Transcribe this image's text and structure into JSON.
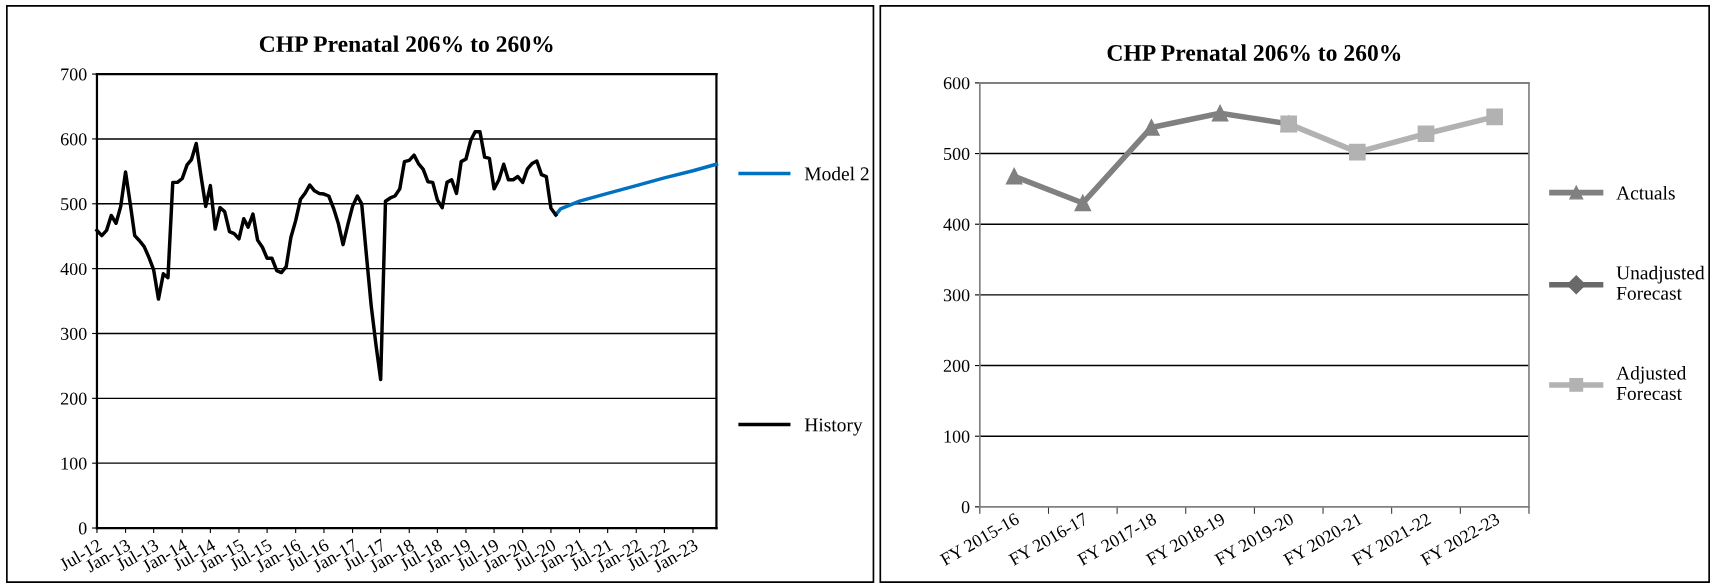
{
  "chart_data": [
    {
      "type": "line",
      "title": "CHP Prenatal 206% to 260%",
      "legend": "right",
      "grid": "y",
      "marker": "none",
      "xlim": [
        "2012-07",
        "2023-06"
      ],
      "ylim": [
        0,
        700
      ],
      "yticks": [
        0,
        100,
        200,
        300,
        400,
        500,
        600,
        700
      ],
      "xticks": [
        {
          "value": "2012-07",
          "label": "Jul-12"
        },
        {
          "value": "2013-01",
          "label": "Jan-13"
        },
        {
          "value": "2013-07",
          "label": "Jul-13"
        },
        {
          "value": "2014-01",
          "label": "Jan-14"
        },
        {
          "value": "2014-07",
          "label": "Jul-14"
        },
        {
          "value": "2015-01",
          "label": "Jan-15"
        },
        {
          "value": "2015-07",
          "label": "Jul-15"
        },
        {
          "value": "2016-01",
          "label": "Jan-16"
        },
        {
          "value": "2016-07",
          "label": "Jul-16"
        },
        {
          "value": "2017-01",
          "label": "Jan-17"
        },
        {
          "value": "2017-07",
          "label": "Jul-17"
        },
        {
          "value": "2018-01",
          "label": "Jan-18"
        },
        {
          "value": "2018-07",
          "label": "Jul-18"
        },
        {
          "value": "2019-01",
          "label": "Jan-19"
        },
        {
          "value": "2019-07",
          "label": "Jul-19"
        },
        {
          "value": "2020-01",
          "label": "Jan-20"
        },
        {
          "value": "2020-07",
          "label": "Jul-20"
        },
        {
          "value": "2021-01",
          "label": "Jan-21"
        },
        {
          "value": "2021-07",
          "label": "Jul-21"
        },
        {
          "value": "2022-01",
          "label": "Jan-22"
        },
        {
          "value": "2022-07",
          "label": "Jul-22"
        },
        {
          "value": "2023-01",
          "label": "Jan-23"
        }
      ],
      "series": [
        {
          "name": "Model 2",
          "color": "#0070c0",
          "x": [
            "2020-08",
            "2020-09",
            "2021-01",
            "2021-07",
            "2022-01",
            "2022-07",
            "2023-01",
            "2023-06"
          ],
          "values": [
            483,
            492,
            504,
            516,
            528,
            540,
            551,
            561
          ]
        },
        {
          "name": "History",
          "color": "#000000",
          "x": [
            "2012-07",
            "2012-08",
            "2012-09",
            "2012-10",
            "2012-11",
            "2012-12",
            "2013-01",
            "2013-02",
            "2013-03",
            "2013-04",
            "2013-05",
            "2013-06",
            "2013-07",
            "2013-08",
            "2013-09",
            "2013-10",
            "2013-11",
            "2013-12",
            "2014-01",
            "2014-02",
            "2014-03",
            "2014-04",
            "2014-05",
            "2014-06",
            "2014-07",
            "2014-08",
            "2014-09",
            "2014-10",
            "2014-11",
            "2014-12",
            "2015-01",
            "2015-02",
            "2015-03",
            "2015-04",
            "2015-05",
            "2015-06",
            "2015-07",
            "2015-08",
            "2015-09",
            "2015-10",
            "2015-11",
            "2015-12",
            "2016-01",
            "2016-02",
            "2016-03",
            "2016-04",
            "2016-05",
            "2016-06",
            "2016-07",
            "2016-08",
            "2016-09",
            "2016-10",
            "2016-11",
            "2016-12",
            "2017-01",
            "2017-02",
            "2017-03",
            "2017-04",
            "2017-05",
            "2017-06",
            "2017-07",
            "2017-08",
            "2017-09",
            "2017-10",
            "2017-11",
            "2017-12",
            "2018-01",
            "2018-02",
            "2018-03",
            "2018-04",
            "2018-05",
            "2018-06",
            "2018-07",
            "2018-08",
            "2018-09",
            "2018-10",
            "2018-11",
            "2018-12",
            "2019-01",
            "2019-02",
            "2019-03",
            "2019-04",
            "2019-05",
            "2019-06",
            "2019-07",
            "2019-08",
            "2019-09",
            "2019-10",
            "2019-11",
            "2019-12",
            "2020-01",
            "2020-02",
            "2020-03",
            "2020-04",
            "2020-05",
            "2020-06",
            "2020-07",
            "2020-08"
          ],
          "values": [
            459,
            451,
            459,
            482,
            470,
            496,
            549,
            499,
            451,
            443,
            434,
            417,
            398,
            353,
            392,
            386,
            533,
            533,
            539,
            560,
            568,
            593,
            544,
            496,
            528,
            461,
            494,
            488,
            457,
            454,
            446,
            477,
            464,
            484,
            444,
            433,
            416,
            416,
            397,
            394,
            403,
            448,
            474,
            507,
            516,
            529,
            520,
            516,
            515,
            512,
            493,
            470,
            437,
            467,
            496,
            512,
            500,
            419,
            343,
            282,
            229,
            504,
            509,
            512,
            523,
            565,
            567,
            575,
            562,
            553,
            534,
            533,
            506,
            494,
            533,
            537,
            516,
            565,
            569,
            598,
            611,
            611,
            572,
            570,
            523,
            537,
            561,
            537,
            537,
            542,
            533,
            554,
            562,
            566,
            545,
            542,
            493,
            483
          ]
        }
      ]
    },
    {
      "type": "line",
      "title": "CHP Prenatal 206% to 260%",
      "legend": "right",
      "grid": "y",
      "categories": [
        "FY 2015-16",
        "FY 2016-17",
        "FY 2017-18",
        "FY 2018-19",
        "FY 2019-20",
        "FY 2020-21",
        "FY 2021-22",
        "FY 2022-23"
      ],
      "ylim": [
        0,
        600
      ],
      "yticks": [
        0,
        100,
        200,
        300,
        400,
        500,
        600
      ],
      "series": [
        {
          "name": "Actuals",
          "color": "#808080",
          "marker": "triangle",
          "values": [
            468,
            430,
            537,
            557,
            542,
            null,
            null,
            null
          ]
        },
        {
          "name": "Unadjusted\nForecast",
          "color": "#696969",
          "marker": "diamond",
          "values": [
            null,
            null,
            null,
            null,
            null,
            null,
            null,
            null
          ]
        },
        {
          "name": "Adjusted\nForecast",
          "color": "#b2b2b2",
          "marker": "square",
          "values": [
            null,
            null,
            null,
            null,
            542,
            502,
            528,
            552
          ]
        }
      ]
    }
  ]
}
